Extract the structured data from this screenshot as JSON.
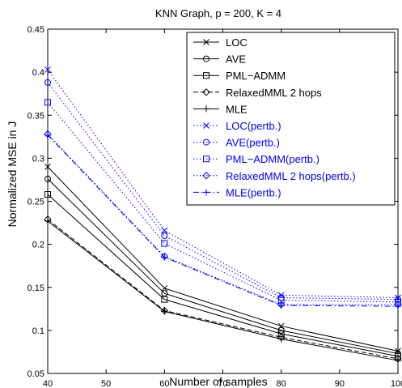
{
  "chart_data": {
    "type": "line",
    "title": "KNN Graph, p = 200, K = 4",
    "xlabel": "Number of samples",
    "ylabel": "Normalized MSE in J",
    "xlim": [
      40,
      100
    ],
    "ylim": [
      0.05,
      0.45
    ],
    "xticks": [
      "40",
      "50",
      "60",
      "70",
      "80",
      "90",
      "100"
    ],
    "yticks": [
      "0.05",
      "0.1",
      "0.15",
      "0.2",
      "0.25",
      "0.3",
      "0.35",
      "0.4",
      "0.45"
    ],
    "x": [
      40,
      60,
      80,
      100
    ],
    "grid": false,
    "legend_position": "top-right",
    "series": [
      {
        "name": "LOC",
        "values": [
          0.29,
          0.149,
          0.105,
          0.076
        ],
        "color": "#000000",
        "dash": "solid",
        "marker": "x"
      },
      {
        "name": "AVE",
        "values": [
          0.276,
          0.143,
          0.1,
          0.073
        ],
        "color": "#000000",
        "dash": "solid",
        "marker": "circle"
      },
      {
        "name": "PML−ADMM",
        "values": [
          0.258,
          0.136,
          0.096,
          0.07
        ],
        "color": "#000000",
        "dash": "solid",
        "marker": "square"
      },
      {
        "name": "RelaxedMML 2 hops",
        "values": [
          0.229,
          0.123,
          0.092,
          0.067
        ],
        "color": "#000000",
        "dash": "dash",
        "marker": "diamond"
      },
      {
        "name": "MLE",
        "values": [
          0.227,
          0.122,
          0.09,
          0.065
        ],
        "color": "#000000",
        "dash": "solid",
        "marker": "plus"
      },
      {
        "name": "LOC(pertb.)",
        "values": [
          0.403,
          0.216,
          0.141,
          0.138
        ],
        "color": "#0000ff",
        "dash": "dot",
        "marker": "x"
      },
      {
        "name": "AVE(pertb.)",
        "values": [
          0.388,
          0.21,
          0.138,
          0.136
        ],
        "color": "#0000ff",
        "dash": "dot",
        "marker": "circle"
      },
      {
        "name": "PML−ADMM(pertb.)",
        "values": [
          0.365,
          0.201,
          0.135,
          0.133
        ],
        "color": "#0000ff",
        "dash": "dot",
        "marker": "square"
      },
      {
        "name": "RelaxedMML 2 hops(pertb.)",
        "values": [
          0.328,
          0.186,
          0.13,
          0.13
        ],
        "color": "#0000ff",
        "dash": "dot",
        "marker": "diamond"
      },
      {
        "name": "MLE(pertb.)",
        "values": [
          0.327,
          0.185,
          0.129,
          0.128
        ],
        "color": "#0000ff",
        "dash": "dashdot",
        "marker": "plus"
      }
    ]
  }
}
